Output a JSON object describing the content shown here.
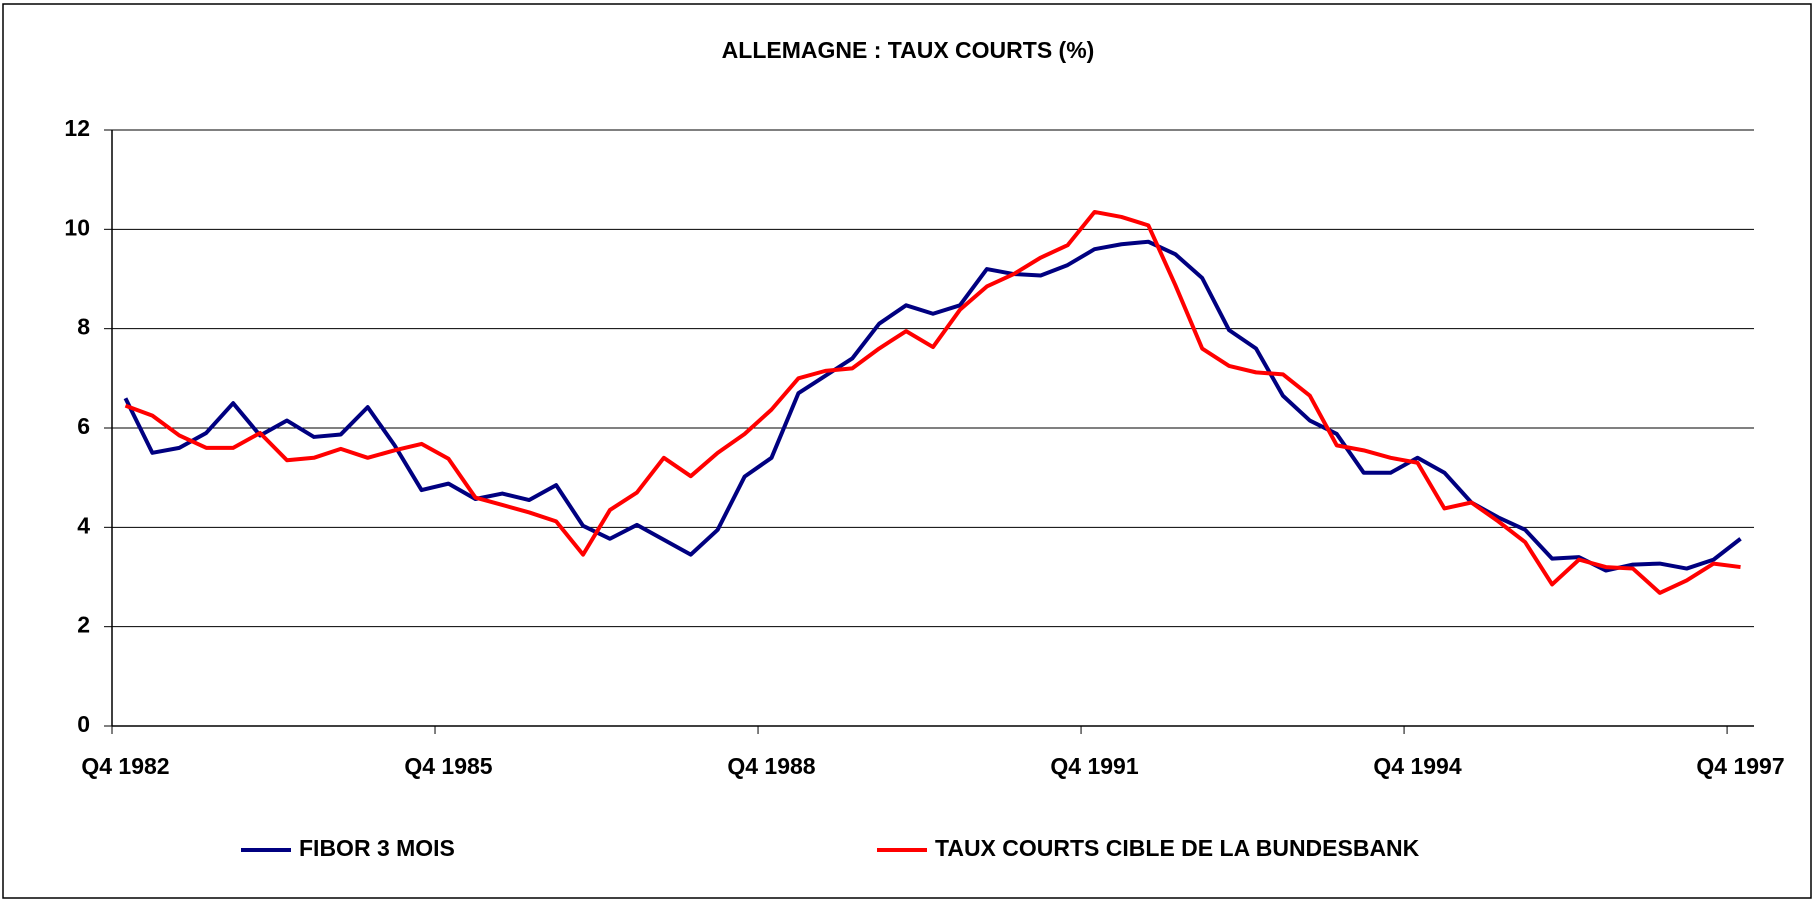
{
  "chart_data": {
    "type": "line",
    "title": "ALLEMAGNE : TAUX COURTS (%)",
    "categories": [
      "Q4 1982",
      null,
      null,
      null,
      null,
      null,
      null,
      null,
      null,
      null,
      null,
      null,
      "Q4 1985",
      null,
      null,
      null,
      null,
      null,
      null,
      null,
      null,
      null,
      null,
      null,
      "Q4 1988",
      null,
      null,
      null,
      null,
      null,
      null,
      null,
      null,
      null,
      null,
      null,
      "Q4 1991",
      null,
      null,
      null,
      null,
      null,
      null,
      null,
      null,
      null,
      null,
      null,
      "Q4 1994",
      null,
      null,
      null,
      null,
      null,
      null,
      null,
      null,
      null,
      null,
      null,
      "Q4 1997"
    ],
    "series": [
      {
        "name": "FIBOR 3 MOIS",
        "color": "#000080",
        "values": [
          6.6,
          5.5,
          5.6,
          5.9,
          6.5,
          5.85,
          6.15,
          5.82,
          5.87,
          6.42,
          5.65,
          4.75,
          4.88,
          4.57,
          4.68,
          4.55,
          4.85,
          4.03,
          3.77,
          4.05,
          3.75,
          3.45,
          3.95,
          5.02,
          5.4,
          6.7,
          7.05,
          7.4,
          8.1,
          8.47,
          8.3,
          8.47,
          9.2,
          9.1,
          9.07,
          9.28,
          9.6,
          9.7,
          9.75,
          9.5,
          9.02,
          7.97,
          7.6,
          6.65,
          6.15,
          5.88,
          5.1,
          5.1,
          5.4,
          5.1,
          4.5,
          4.2,
          3.95,
          3.37,
          3.4,
          3.13,
          3.25,
          3.27,
          3.17,
          3.35,
          3.77
        ]
      },
      {
        "name": "TAUX COURTS CIBLE DE LA BUNDESBANK",
        "color": "#ff0000",
        "values": [
          6.45,
          6.25,
          5.85,
          5.6,
          5.6,
          5.9,
          5.35,
          5.4,
          5.58,
          5.4,
          5.55,
          5.68,
          5.38,
          4.6,
          4.45,
          4.3,
          4.12,
          3.45,
          4.35,
          4.7,
          5.4,
          5.03,
          5.5,
          5.88,
          6.37,
          7.0,
          7.15,
          7.2,
          7.6,
          7.95,
          7.63,
          8.38,
          8.85,
          9.1,
          9.43,
          9.68,
          10.35,
          10.25,
          10.08,
          8.88,
          7.6,
          7.25,
          7.12,
          7.08,
          6.65,
          5.65,
          5.55,
          5.4,
          5.3,
          4.38,
          4.5,
          4.12,
          3.7,
          2.85,
          3.35,
          3.2,
          3.17,
          2.68,
          2.93,
          3.27,
          3.2
        ]
      }
    ],
    "ylim": [
      0,
      12
    ],
    "yticks": [
      0,
      2,
      4,
      6,
      8,
      10,
      12
    ],
    "grid": true,
    "legend": "bottom"
  }
}
